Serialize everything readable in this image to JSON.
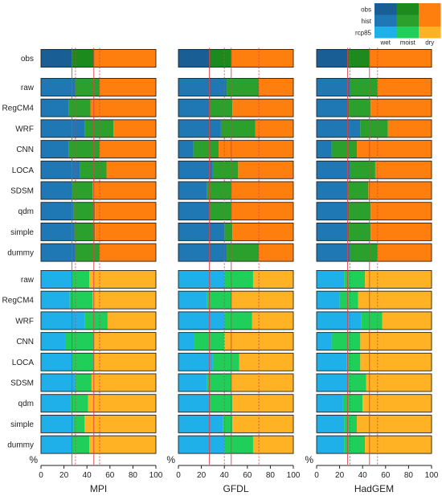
{
  "chart_data": {
    "type": "bar",
    "orientation": "horizontal-stacked",
    "percent_label": "%",
    "x_ticks": [
      "0",
      "20",
      "40",
      "60",
      "80",
      "100"
    ],
    "xlim": [
      0,
      100
    ],
    "categories": [
      "wet",
      "moist",
      "dry"
    ],
    "legend": {
      "row_labels": [
        "obs",
        "hist",
        "rcp85"
      ],
      "col_labels": [
        "wet",
        "moist",
        "dry"
      ],
      "placement": "top-right"
    },
    "colors": {
      "obs": [
        "#1a5e96",
        "#1c8a1c",
        "#ff7f0e"
      ],
      "hist": [
        "#1f77b4",
        "#2ca02c",
        "#ff7f0e"
      ],
      "rcp85": [
        "#1fb0ea",
        "#20cf5a",
        "#ffb224"
      ]
    },
    "panels": [
      {
        "title": "MPI",
        "obs": {
          "label": "obs",
          "wet": 27,
          "moist": 19
        },
        "hist": [
          {
            "label": "raw",
            "wet": 30,
            "moist": 21
          },
          {
            "label": "RegCM4",
            "wet": 24,
            "moist": 19
          },
          {
            "label": "WRF",
            "wet": 38,
            "moist": 25
          },
          {
            "label": "CNN",
            "wet": 24,
            "moist": 27
          },
          {
            "label": "LOCA",
            "wet": 34,
            "moist": 23
          },
          {
            "label": "SDSM",
            "wet": 27,
            "moist": 18
          },
          {
            "label": "qdm",
            "wet": 28,
            "moist": 19
          },
          {
            "label": "simple",
            "wet": 29,
            "moist": 18
          },
          {
            "label": "dummy",
            "wet": 30,
            "moist": 21
          }
        ],
        "rcp85": [
          {
            "label": "raw",
            "wet": 27,
            "moist": 15
          },
          {
            "label": "RegCM4",
            "wet": 25,
            "moist": 20
          },
          {
            "label": "WRF",
            "wet": 38,
            "moist": 20
          },
          {
            "label": "CNN",
            "wet": 21,
            "moist": 25
          },
          {
            "label": "LOCA",
            "wet": 27,
            "moist": 19
          },
          {
            "label": "SDSM",
            "wet": 30,
            "moist": 14
          },
          {
            "label": "qdm",
            "wet": 26,
            "moist": 15
          },
          {
            "label": "simple",
            "wet": 28,
            "moist": 10
          },
          {
            "label": "dummy",
            "wet": 27,
            "moist": 15
          }
        ],
        "ref_lines": {
          "obs": [
            27,
            46
          ],
          "future": [
            30,
            51
          ]
        }
      },
      {
        "title": "GFDL",
        "obs": {
          "label": "obs",
          "wet": 27,
          "moist": 19
        },
        "hist": [
          {
            "label": "raw",
            "wet": 42,
            "moist": 28
          },
          {
            "label": "RegCM4",
            "wet": 27,
            "moist": 20
          },
          {
            "label": "WRF",
            "wet": 37,
            "moist": 30
          },
          {
            "label": "CNN",
            "wet": 13,
            "moist": 22
          },
          {
            "label": "LOCA",
            "wet": 30,
            "moist": 22
          },
          {
            "label": "SDSM",
            "wet": 25,
            "moist": 21
          },
          {
            "label": "qdm",
            "wet": 27,
            "moist": 19
          },
          {
            "label": "simple",
            "wet": 40,
            "moist": 7
          },
          {
            "label": "dummy",
            "wet": 42,
            "moist": 28
          }
        ],
        "rcp85": [
          {
            "label": "raw",
            "wet": 40,
            "moist": 25
          },
          {
            "label": "RegCM4",
            "wet": 25,
            "moist": 21
          },
          {
            "label": "WRF",
            "wet": 40,
            "moist": 24
          },
          {
            "label": "CNN",
            "wet": 14,
            "moist": 26
          },
          {
            "label": "LOCA",
            "wet": 30,
            "moist": 23
          },
          {
            "label": "SDSM",
            "wet": 25,
            "moist": 21
          },
          {
            "label": "qdm",
            "wet": 27,
            "moist": 20
          },
          {
            "label": "simple",
            "wet": 39,
            "moist": 8
          },
          {
            "label": "dummy",
            "wet": 40,
            "moist": 25
          }
        ],
        "ref_lines": {
          "obs": [
            27,
            46
          ],
          "future": [
            40,
            70
          ]
        }
      },
      {
        "title": "HadGEM",
        "obs": {
          "label": "obs",
          "wet": 27,
          "moist": 19
        },
        "hist": [
          {
            "label": "raw",
            "wet": 29,
            "moist": 24
          },
          {
            "label": "RegCM4",
            "wet": 28,
            "moist": 19
          },
          {
            "label": "WRF",
            "wet": 38,
            "moist": 24
          },
          {
            "label": "CNN",
            "wet": 13,
            "moist": 22
          },
          {
            "label": "LOCA",
            "wet": 29,
            "moist": 22
          },
          {
            "label": "SDSM",
            "wet": 27,
            "moist": 18
          },
          {
            "label": "qdm",
            "wet": 28,
            "moist": 19
          },
          {
            "label": "simple",
            "wet": 28,
            "moist": 19
          },
          {
            "label": "dummy",
            "wet": 29,
            "moist": 24
          }
        ],
        "rcp85": [
          {
            "label": "raw",
            "wet": 24,
            "moist": 18
          },
          {
            "label": "RegCM4",
            "wet": 20,
            "moist": 16
          },
          {
            "label": "WRF",
            "wet": 39,
            "moist": 18
          },
          {
            "label": "CNN",
            "wet": 13,
            "moist": 25
          },
          {
            "label": "LOCA",
            "wet": 26,
            "moist": 12
          },
          {
            "label": "SDSM",
            "wet": 28,
            "moist": 15
          },
          {
            "label": "qdm",
            "wet": 23,
            "moist": 17
          },
          {
            "label": "simple",
            "wet": 24,
            "moist": 11
          },
          {
            "label": "dummy",
            "wet": 24,
            "moist": 18
          }
        ],
        "ref_lines": {
          "obs": [
            27,
            46
          ],
          "future": [
            29,
            53
          ]
        }
      }
    ],
    "grid": false
  }
}
